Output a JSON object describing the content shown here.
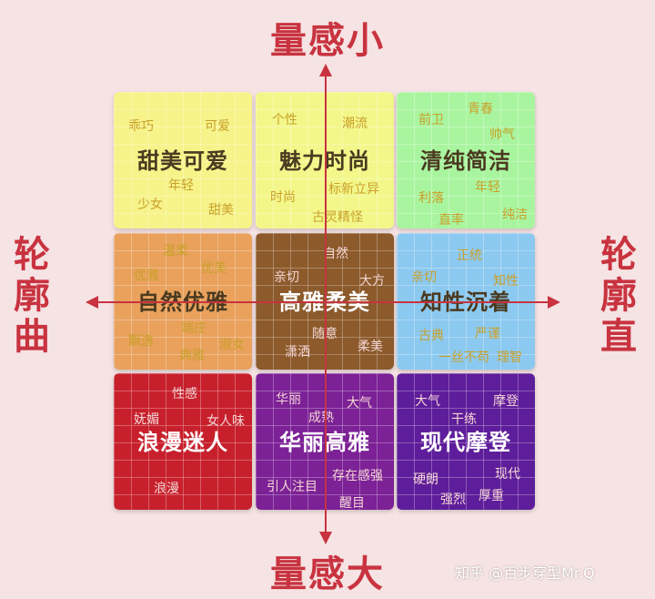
{
  "axes": {
    "top": "量感小",
    "bottom": "量感大",
    "left": "轮廓曲",
    "right": "轮廓直"
  },
  "cells": [
    {
      "title": "甜美可爱",
      "color": "#f6f38a",
      "keywords": [
        "乖巧",
        "可爱",
        "年轻",
        "少女",
        "甜美"
      ]
    },
    {
      "title": "魅力时尚",
      "color": "#f3f78a",
      "keywords": [
        "个性",
        "潮流",
        "时尚",
        "标新立异",
        "古灵精怪"
      ]
    },
    {
      "title": "清纯简洁",
      "color": "#a9f59f",
      "keywords": [
        "前卫",
        "青春",
        "帅气",
        "利落",
        "年轻",
        "直率",
        "纯洁"
      ]
    },
    {
      "title": "自然优雅",
      "color": "#e9a15c",
      "keywords": [
        "温柔",
        "优雅",
        "优美",
        "端庄",
        "飘逸",
        "典雅",
        "淑女"
      ]
    },
    {
      "title": "高雅柔美",
      "color": "#8c5a2b",
      "keywords": [
        "自然",
        "亲切",
        "大方",
        "随意",
        "潇洒",
        "柔美"
      ]
    },
    {
      "title": "知性沉着",
      "color": "#8cc9f0",
      "keywords": [
        "正统",
        "亲切",
        "知性",
        "古典",
        "严谨",
        "一丝不苟",
        "理智"
      ]
    },
    {
      "title": "浪漫迷人",
      "color": "#c7202c",
      "keywords": [
        "性感",
        "妩媚",
        "女人味",
        "浪漫"
      ]
    },
    {
      "title": "华丽高雅",
      "color": "#7c2196",
      "keywords": [
        "华丽",
        "大气",
        "成熟",
        "存在感强",
        "引人注目",
        "醒目"
      ]
    },
    {
      "title": "现代摩登",
      "color": "#5e1d9a",
      "keywords": [
        "大气",
        "摩登",
        "干练",
        "硬朗",
        "现代",
        "强烈",
        "厚重"
      ]
    }
  ],
  "watermark": "知乎 @百步穿型Mr.Q"
}
